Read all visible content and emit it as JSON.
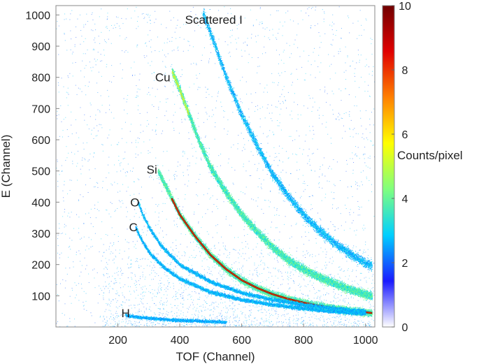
{
  "chart_data": {
    "type": "heatmap",
    "title": "",
    "xlabel": "TOF (Channel)",
    "ylabel": "E (Channel)",
    "xlim": [
      0,
      1030
    ],
    "ylim": [
      0,
      1030
    ],
    "xticks": [
      200,
      400,
      600,
      800,
      1000
    ],
    "yticks": [
      100,
      200,
      300,
      400,
      500,
      600,
      700,
      800,
      900,
      1000
    ],
    "colorbar": {
      "label": "Counts/pixel",
      "range": [
        0,
        10
      ],
      "ticks": [
        0,
        2,
        4,
        6,
        8,
        10
      ],
      "colormap": [
        "#ffffff",
        "#1a1aff",
        "#00cfff",
        "#7fff7f",
        "#ffff00",
        "#ff8000",
        "#e00000",
        "#700000"
      ]
    },
    "annotations": [
      {
        "text": "Scattered I",
        "x": 510,
        "y": 985
      },
      {
        "text": "Cu",
        "x": 345,
        "y": 800
      },
      {
        "text": "Si",
        "x": 310,
        "y": 505
      },
      {
        "text": "O",
        "x": 255,
        "y": 400
      },
      {
        "text": "C",
        "x": 250,
        "y": 320
      },
      {
        "text": "H",
        "x": 225,
        "y": 45
      }
    ],
    "series": [
      {
        "name": "Scattered I",
        "x": [
          475,
          500,
          550,
          600,
          650,
          700,
          750,
          800,
          850,
          900,
          950,
          1000,
          1020
        ],
        "y": [
          1005,
          940,
          800,
          680,
          580,
          490,
          420,
          360,
          310,
          270,
          235,
          205,
          198
        ]
      },
      {
        "name": "Cu",
        "x": [
          375,
          400,
          430,
          460,
          500,
          550,
          600,
          650,
          700,
          750,
          800,
          850,
          900,
          950,
          1000,
          1020
        ],
        "y": [
          820,
          760,
          680,
          600,
          510,
          430,
          360,
          305,
          255,
          215,
          185,
          160,
          140,
          120,
          105,
          100
        ]
      },
      {
        "name": "Si",
        "x": [
          330,
          360,
          380,
          400,
          450,
          500,
          550,
          600,
          650,
          700,
          750,
          800,
          850,
          900,
          950,
          1000,
          1020
        ],
        "y": [
          500,
          440,
          400,
          360,
          290,
          230,
          185,
          150,
          125,
          105,
          90,
          78,
          68,
          60,
          53,
          47,
          45
        ]
      },
      {
        "name": "O",
        "x": [
          265,
          280,
          300,
          340,
          400,
          500,
          600,
          700,
          800,
          900,
          1000
        ],
        "y": [
          400,
          360,
          320,
          260,
          200,
          145,
          110,
          88,
          72,
          60,
          50
        ]
      },
      {
        "name": "C",
        "x": [
          258,
          270,
          300,
          350,
          400,
          500,
          600,
          700,
          800,
          900,
          1000
        ],
        "y": [
          320,
          290,
          240,
          190,
          155,
          112,
          88,
          72,
          60,
          50,
          43
        ]
      },
      {
        "name": "H",
        "x": [
          225,
          260,
          300,
          350,
          400,
          450,
          500,
          550
        ],
        "y": [
          38,
          33,
          29,
          25,
          22,
          20,
          18,
          16
        ]
      }
    ]
  }
}
